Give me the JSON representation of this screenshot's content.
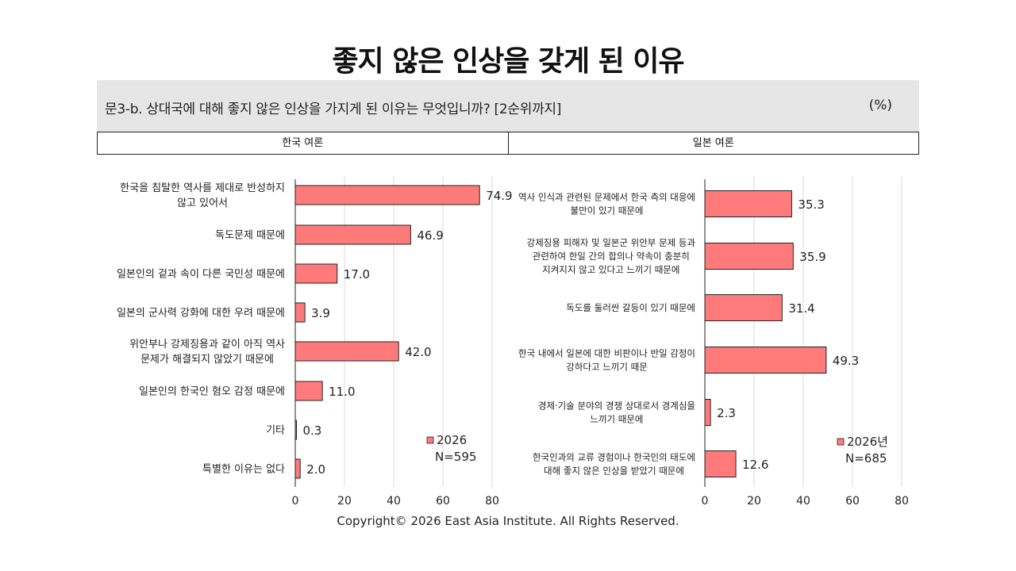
{
  "title": "좋지 않은 인상을 갖게 된 이유",
  "question": "문3-b. 상대국에 대해 좋지 않은 인상을 가지게 된 이유는 무엇입니까? [2순위까지]",
  "unit": "(%)",
  "headers": [
    "한국 여론",
    "일본 여론"
  ],
  "copyright": "Copyright© 2026 East Asia Institute. All Rights Reserved.",
  "colors": {
    "bar": "#ff7b7b",
    "bar_stroke": "#222222",
    "grid": "#d9d9d9"
  },
  "chart_data": [
    {
      "type": "bar",
      "orientation": "horizontal",
      "xlim": [
        0,
        80
      ],
      "xticks": [
        0,
        20,
        40,
        60,
        80
      ],
      "grid": true,
      "legend": "bottom-right",
      "series": [
        {
          "name": "2026",
          "note": "N=595"
        }
      ],
      "categories": [
        [
          "한국을 침탈한 역사를 제대로 반성하지",
          "않고 있어서"
        ],
        [
          "독도문제 때문에"
        ],
        [
          "일본인의 겉과 속이 다른 국민성 때문에"
        ],
        [
          "일본의 군사력 강화에 대한 우려 때문에"
        ],
        [
          "위안부나 강제징용과 같이 아직 역사",
          "문제가 해결되지 않았기 때문에"
        ],
        [
          "일본인의 한국인 혐오 감정 때문에"
        ],
        [
          "기타"
        ],
        [
          "특별한 이유는 없다"
        ]
      ],
      "values": [
        74.9,
        46.9,
        17.0,
        3.9,
        42.0,
        11.0,
        0.3,
        2.0
      ],
      "value_labels": [
        "74.9",
        "46.9",
        "17.0",
        "3.9",
        "42.0",
        "11.0",
        "0.3",
        "2.0"
      ]
    },
    {
      "type": "bar",
      "orientation": "horizontal",
      "xlim": [
        0,
        80
      ],
      "xticks": [
        0,
        20,
        40,
        60,
        80
      ],
      "grid": true,
      "legend": "bottom-right",
      "series": [
        {
          "name": "2026년",
          "note": "N=685"
        }
      ],
      "categories": [
        [
          "역사 인식과 관련된 문제에서 한국 측의 대응에",
          "불만이 있기 때문에"
        ],
        [
          "강제징용 피해자 및 일본군 위안부 문제 등과",
          "관련하여 한일 간의 합의나 약속이 충분히",
          "지켜지지 않고 있다고 느끼기 때문에"
        ],
        [
          "독도를 둘러싼 갈등이 있기 때문에"
        ],
        [
          "한국 내에서 일본에 대한 비판이나 반일 감정이",
          "강하다고 느끼기 때문"
        ],
        [
          "경제·기술 분야의 경쟁 상대로서 경계심을",
          "느끼기 때문에"
        ],
        [
          "한국인과의 교류 경험이나 한국인의 태도에",
          "대해 좋지 않은 인상을 받았기 때문에"
        ]
      ],
      "values": [
        35.3,
        35.9,
        31.4,
        49.3,
        2.3,
        12.6
      ],
      "value_labels": [
        "35.3",
        "35.9",
        "31.4",
        "49.3",
        "2.3",
        "12.6"
      ]
    }
  ]
}
